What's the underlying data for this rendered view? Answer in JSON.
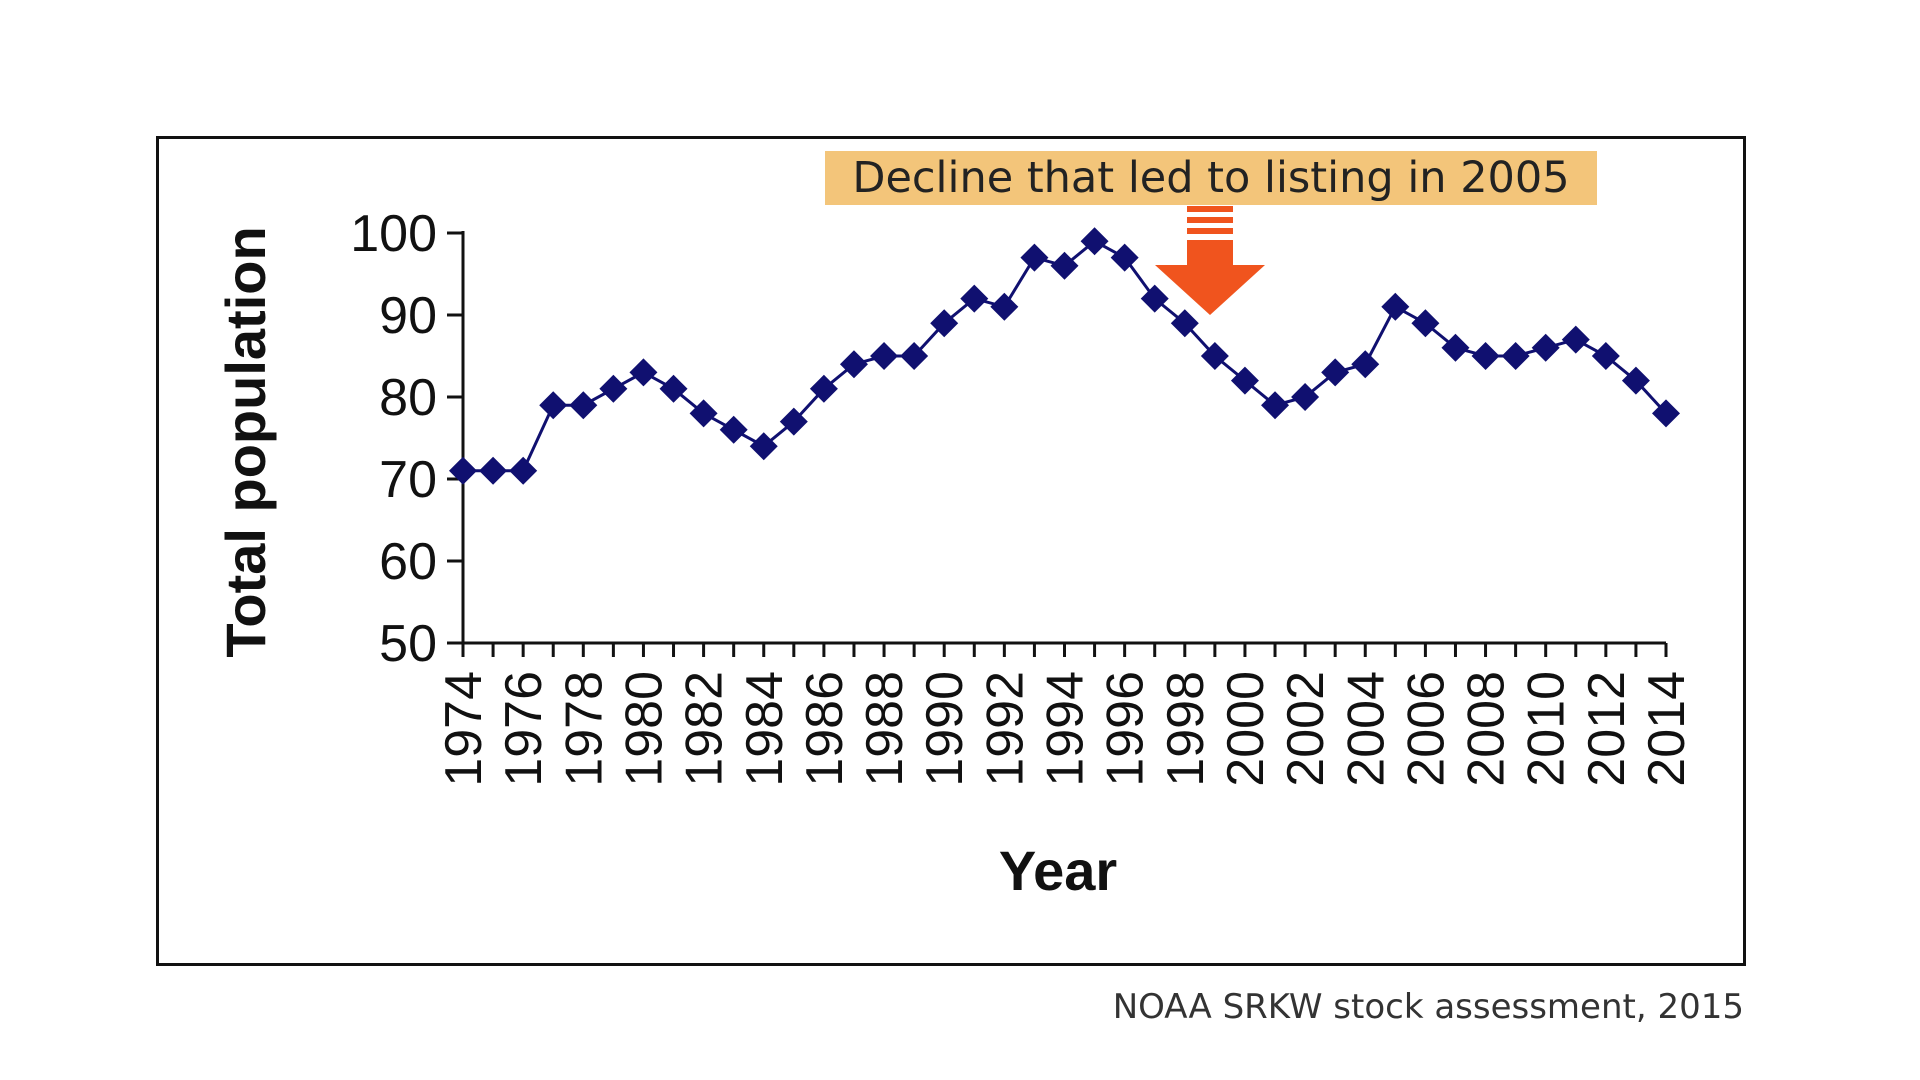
{
  "annotation": "Decline that led to listing in 2005",
  "source": "NOAA SRKW stock assessment, 2015",
  "colors": {
    "series": "#101070",
    "annotation_bg": "#f3c57a",
    "arrow": "#f0541e"
  },
  "chart_data": {
    "type": "line",
    "title": "",
    "xlabel": "Year",
    "ylabel": "Total population",
    "ylim": [
      50,
      100
    ],
    "yticks": [
      50,
      60,
      70,
      80,
      90,
      100
    ],
    "xlim": [
      1974,
      2014
    ],
    "xtick_labels": [
      "1974",
      "1976",
      "1978",
      "1980",
      "1982",
      "1984",
      "1986",
      "1988",
      "1990",
      "1992",
      "1994",
      "1996",
      "1998",
      "2000",
      "2002",
      "2004",
      "2006",
      "2008",
      "2010",
      "2012",
      "2014"
    ],
    "grid": false,
    "marker": "diamond",
    "x": [
      1974,
      1975,
      1976,
      1977,
      1978,
      1979,
      1980,
      1981,
      1982,
      1983,
      1984,
      1985,
      1986,
      1987,
      1988,
      1989,
      1990,
      1991,
      1992,
      1993,
      1994,
      1995,
      1996,
      1997,
      1998,
      1999,
      2000,
      2001,
      2002,
      2003,
      2004,
      2005,
      2006,
      2007,
      2008,
      2009,
      2010,
      2011,
      2012,
      2013,
      2014
    ],
    "y": [
      71,
      71,
      71,
      79,
      79,
      81,
      83,
      81,
      78,
      76,
      74,
      77,
      81,
      84,
      85,
      85,
      89,
      92,
      91,
      97,
      96,
      99,
      97,
      92,
      89,
      85,
      82,
      79,
      80,
      83,
      84,
      91,
      89,
      86,
      85,
      85,
      86,
      87,
      85,
      82,
      78
    ]
  }
}
